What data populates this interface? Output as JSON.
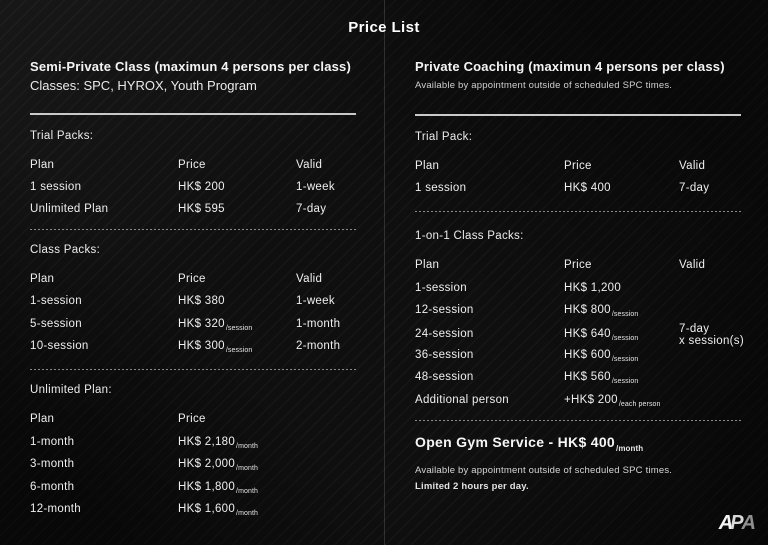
{
  "title": "Price List",
  "logo": {
    "letters": [
      "A",
      "P",
      "A"
    ]
  },
  "colors": {
    "background": "#0f0f0f",
    "text": "#f0f0f0",
    "muted_text": "#cfcfcf",
    "divider_solid": "#c9c9c9",
    "divider_dotted": "#8a8a8a"
  },
  "left": {
    "heading": "Semi-Private Class (maximun 4 persons per class)",
    "subheading": "Classes: SPC, HYROX, Youth Program",
    "sections": [
      {
        "label": "Trial Packs:",
        "headers": {
          "plan": "Plan",
          "price": "Price",
          "valid": "Valid"
        },
        "rows": [
          {
            "plan": "1 session",
            "price": "HK$ 200",
            "unit": "",
            "valid": "1-week"
          },
          {
            "plan": "Unlimited Plan",
            "price": "HK$ 595",
            "unit": "",
            "valid": "7-day"
          }
        ]
      },
      {
        "label": "Class Packs:",
        "headers": {
          "plan": "Plan",
          "price": "Price",
          "valid": "Valid"
        },
        "rows": [
          {
            "plan": "1-session",
            "price": "HK$ 380",
            "unit": "",
            "valid": "1-week"
          },
          {
            "plan": "5-session",
            "price": "HK$ 320",
            "unit": "/session",
            "valid": "1-month"
          },
          {
            "plan": "10-session",
            "price": "HK$ 300",
            "unit": "/session",
            "valid": "2-month"
          }
        ]
      },
      {
        "label": "Unlimited Plan:",
        "headers": {
          "plan": "Plan",
          "price": "Price"
        },
        "rows": [
          {
            "plan": "1-month",
            "price": "HK$ 2,180",
            "unit": "/month"
          },
          {
            "plan": "3-month",
            "price": "HK$ 2,000",
            "unit": "/month"
          },
          {
            "plan": "6-month",
            "price": "HK$ 1,800",
            "unit": "/month"
          },
          {
            "plan": "12-month",
            "price": "HK$ 1,600",
            "unit": "/month"
          }
        ]
      }
    ]
  },
  "right": {
    "heading": "Private Coaching (maximun 4 persons per class)",
    "subheading": "Available by appointment outside of scheduled SPC times.",
    "sections": [
      {
        "label": "Trial Pack:",
        "headers": {
          "plan": "Plan",
          "price": "Price",
          "valid": "Valid"
        },
        "rows": [
          {
            "plan": "1 session",
            "price": "HK$ 400",
            "unit": "",
            "valid": "7-day"
          }
        ]
      },
      {
        "label": "1-on-1 Class Packs:",
        "headers": {
          "plan": "Plan",
          "price": "Price",
          "valid": "Valid"
        },
        "rows": [
          {
            "plan": "1-session",
            "price": "HK$ 1,200",
            "unit": "",
            "valid": "",
            "valid2": ""
          },
          {
            "plan": "12-session",
            "price": "HK$ 800",
            "unit": "/session",
            "valid": "",
            "valid2": ""
          },
          {
            "plan": "24-session",
            "price": "HK$ 640",
            "unit": "/session",
            "valid": "7-day",
            "valid2": "x session(s)"
          },
          {
            "plan": "36-session",
            "price": "HK$ 600",
            "unit": "/session",
            "valid": "",
            "valid2": ""
          },
          {
            "plan": "48-session",
            "price": "HK$ 560",
            "unit": "/session",
            "valid": "",
            "valid2": ""
          },
          {
            "plan": "Additional person",
            "price": "+HK$ 200",
            "unit": "/each person",
            "valid": "",
            "valid2": ""
          }
        ]
      }
    ],
    "open_gym": {
      "heading": "Open Gym Service - HK$ 400",
      "unit": "/month",
      "note1": "Available by appointment outside of scheduled SPC times.",
      "note2": "Limited 2 hours per day."
    }
  }
}
